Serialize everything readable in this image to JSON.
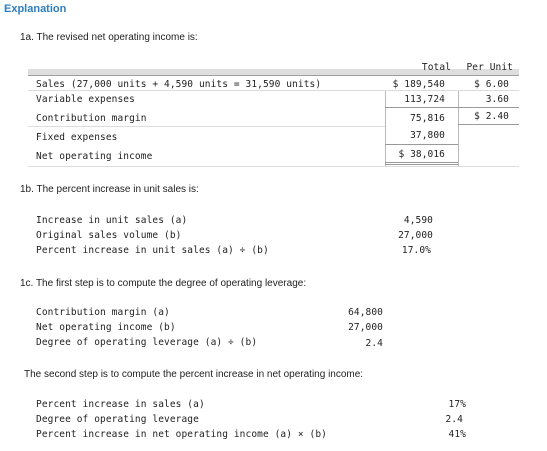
{
  "heading": "Explanation",
  "part1a": {
    "label": "1a. The revised net operating income is:",
    "headers": {
      "total": "Total",
      "per_unit": "Per Unit"
    },
    "rows": [
      {
        "label": "Sales (27,000 units + 4,590 units = 31,590 units)",
        "total": "$ 189,540",
        "per_unit": "$ 6.00"
      },
      {
        "label": "Variable expenses",
        "total": "113,724",
        "per_unit": "3.60"
      },
      {
        "label": "Contribution margin",
        "total": "75,816",
        "per_unit": "$ 2.40"
      },
      {
        "label": "Fixed expenses",
        "total": "37,800",
        "per_unit": ""
      },
      {
        "label": "Net operating income",
        "total": "$ 38,016",
        "per_unit": ""
      }
    ]
  },
  "part1b": {
    "label": "1b. The percent increase in unit sales is:",
    "rows": [
      {
        "label": "Increase in unit sales (a)",
        "value": "4,590"
      },
      {
        "label": "Original sales volume (b)",
        "value": "27,000"
      },
      {
        "label": "Percent increase in unit sales (a) ÷ (b)",
        "value": "17.0%"
      }
    ]
  },
  "part1c": {
    "label": "1c. The first step is to compute the degree of operating leverage:",
    "rows": [
      {
        "label": "Contribution margin (a)",
        "value": "64,800"
      },
      {
        "label": "Net operating income (b)",
        "value": "27,000"
      },
      {
        "label": "Degree of operating leverage (a) ÷ (b)",
        "value": "2.4"
      }
    ]
  },
  "part1d": {
    "label": "The second step is to compute the percent increase in net operating income:",
    "rows": [
      {
        "label": "Percent increase in sales (a)",
        "value": "17%"
      },
      {
        "label": "Degree of operating leverage",
        "value": "2.4"
      },
      {
        "label": "Percent increase in net operating income (a) × (b)",
        "value": "41%"
      }
    ]
  }
}
